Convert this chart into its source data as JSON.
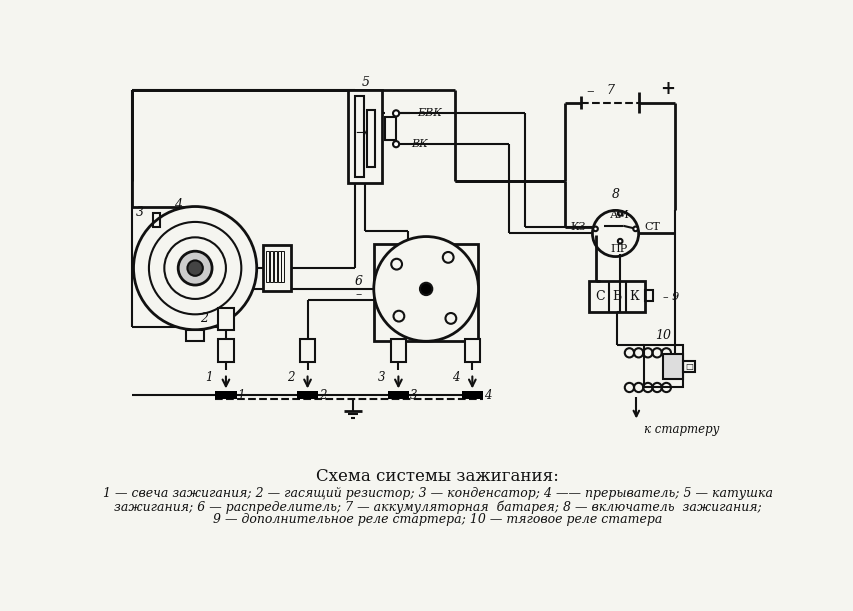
{
  "title": "Схема системы зажигания:",
  "legend_line1": "1 — свеча зажигания; 2 — гасящий резистор; 3 — конденсатор; 4 —— прерыватель; 5 — катушка",
  "legend_line2": "зажигания; 6 — распределитель; 7 — аккумуляторная  батарея; 8 — включатель  зажигания;",
  "legend_line3": "9 — дополнительное реле стартера; 10 — тяговое реле статера",
  "bg_color": "#f5f5f0",
  "line_color": "#111111",
  "title_fontsize": 12,
  "legend_fontsize": 9
}
